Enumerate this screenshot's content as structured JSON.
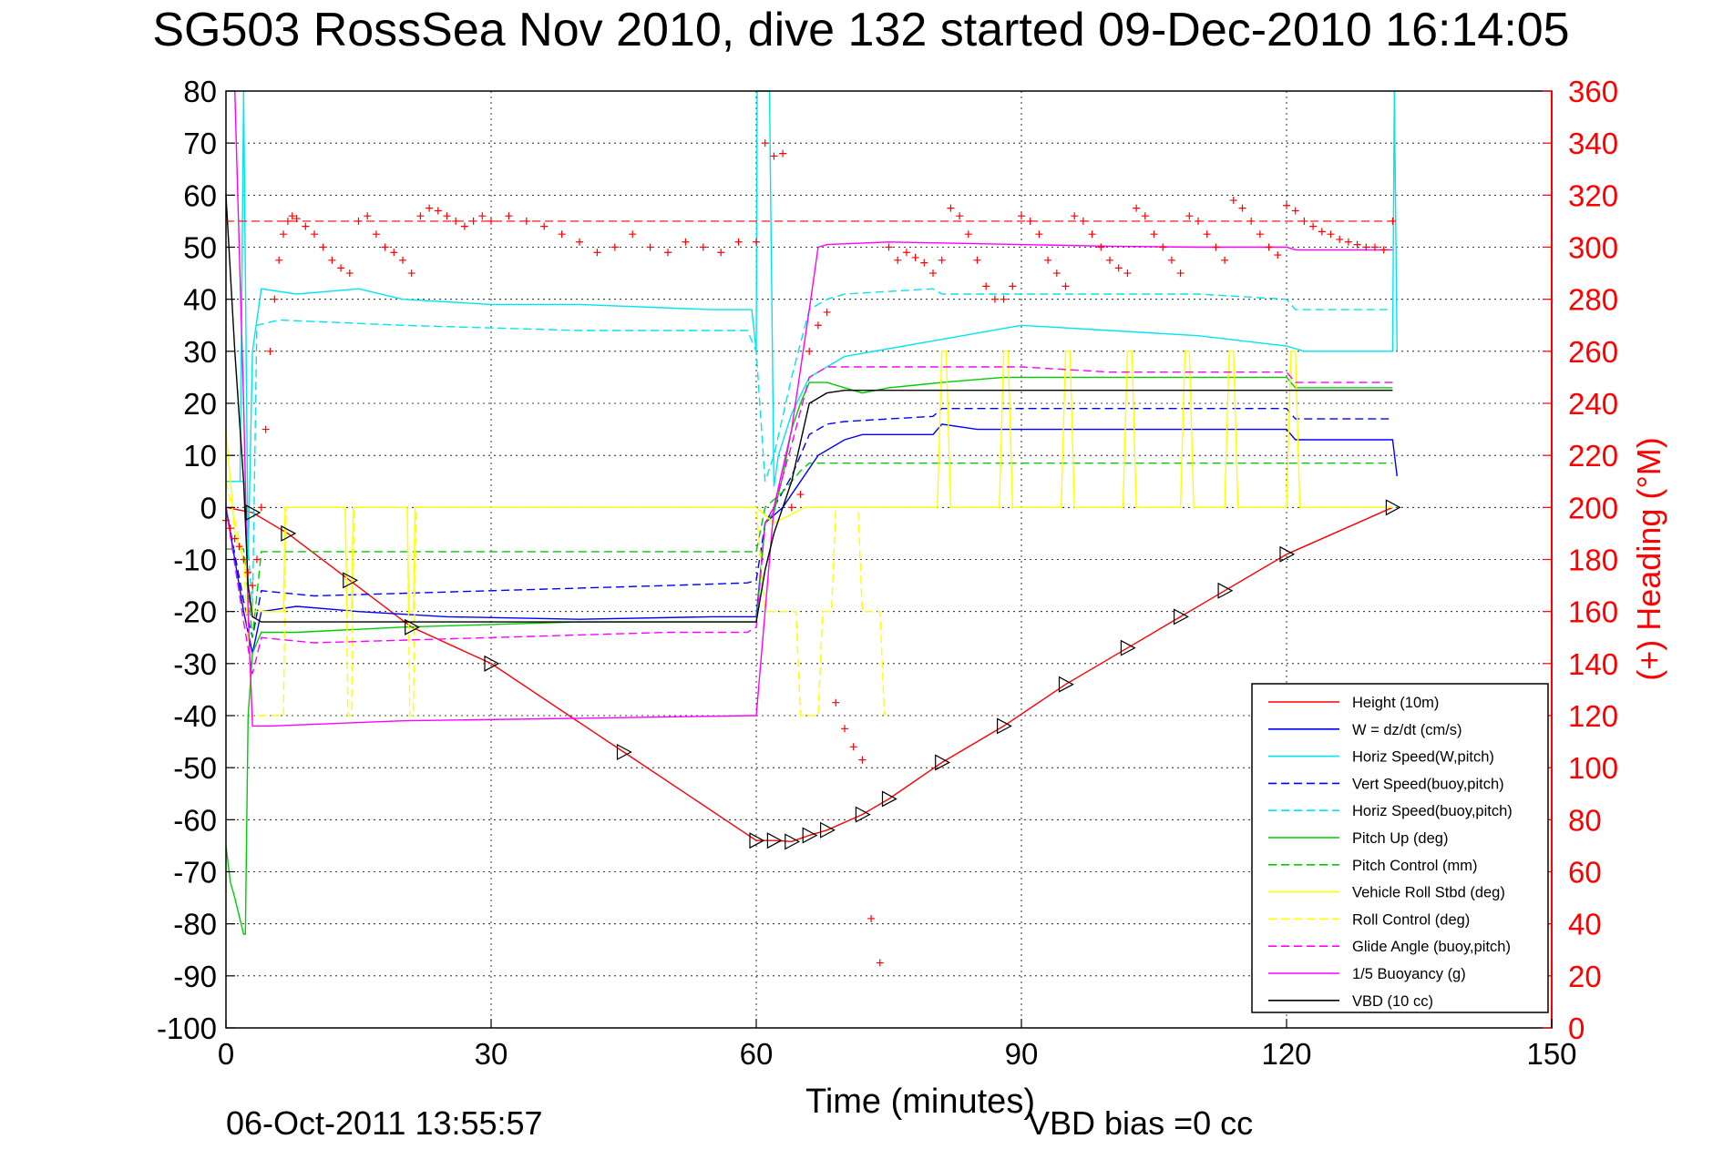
{
  "chart_data": {
    "type": "line",
    "title": "SG503 RossSea Nov 2010, dive 132 started 09-Dec-2010 16:14:05",
    "xlabel": "Time (minutes)",
    "ylabel": "",
    "ylabel_right": "(+) Heading (°M)",
    "xlim": [
      0,
      150
    ],
    "ylim": [
      -100,
      80
    ],
    "ylim_right": [
      0,
      360
    ],
    "x_ticks": [
      "0",
      "30",
      "60",
      "90",
      "120",
      "150"
    ],
    "y_ticks": [
      "80",
      "70",
      "60",
      "50",
      "40",
      "30",
      "20",
      "10",
      "0",
      "-10",
      "-20",
      "-30",
      "-40",
      "-50",
      "-60",
      "-70",
      "-80",
      "-90",
      "-100"
    ],
    "y_right_ticks": [
      "360",
      "340",
      "320",
      "300",
      "280",
      "260",
      "240",
      "220",
      "200",
      "180",
      "160",
      "140",
      "120",
      "100",
      "80",
      "60",
      "40",
      "20",
      "0"
    ],
    "grid": true,
    "legend_position": "bottom-right",
    "footer_left": "06-Oct-2011 13:55:57",
    "footer_right": "VBD bias =0 cc",
    "series": [
      {
        "name": "Height (10m)",
        "color": "#ff0000",
        "dash": "solid",
        "x": [
          0,
          3,
          7,
          14,
          21,
          30,
          45,
          60,
          62,
          64,
          66,
          68,
          72,
          75,
          81,
          88,
          95,
          102,
          108,
          113,
          120,
          132
        ],
        "y": [
          0,
          -1,
          -5,
          -14,
          -23,
          -30,
          -47,
          -64,
          -64,
          -64.2,
          -63,
          -62,
          -59,
          -56,
          -49,
          -42,
          -34,
          -27,
          -21,
          -16,
          -9,
          0
        ]
      },
      {
        "name": "W = dz/dt (cm/s)",
        "color": "#0000ff",
        "dash": "solid",
        "x": [
          0,
          2,
          3,
          4,
          8,
          15,
          25,
          40,
          55,
          60,
          61,
          63,
          65,
          67,
          70,
          72,
          75,
          80,
          81,
          85,
          95,
          105,
          115,
          120,
          121,
          125,
          132,
          132.5
        ],
        "y": [
          0,
          -20,
          -28,
          -20,
          -19,
          -20,
          -21,
          -21.5,
          -21,
          -21,
          -3,
          0,
          5,
          10,
          13,
          14,
          14,
          14,
          16,
          15,
          15,
          15,
          15,
          15,
          13,
          13,
          13,
          6
        ]
      },
      {
        "name": "Horiz Speed(W,pitch)",
        "color": "#00e5ee",
        "dash": "solid",
        "x": [
          0,
          1.6,
          2,
          2.5,
          3,
          4,
          8,
          15,
          20,
          30,
          40,
          55,
          59.5,
          60,
          60.1,
          61.5,
          62,
          62.5,
          64,
          66,
          70,
          80,
          90,
          100,
          110,
          120,
          122,
          125,
          130,
          132,
          132.2,
          132.5
        ],
        "y": [
          5,
          5,
          80,
          -10,
          30,
          42,
          41,
          42,
          40,
          39,
          39,
          38,
          38,
          30,
          80,
          80,
          4,
          10,
          18,
          25,
          29,
          32,
          35,
          34,
          33,
          31,
          30,
          30,
          30,
          30,
          80,
          30
        ]
      },
      {
        "name": "Vert Speed(buoy,pitch)",
        "color": "#0000ff",
        "dash": "dashed",
        "x": [
          0,
          2,
          3,
          4,
          10,
          30,
          50,
          59,
          60,
          61,
          62,
          64,
          66,
          68,
          70,
          75,
          80,
          81,
          90,
          100,
          110,
          120,
          121,
          132
        ],
        "y": [
          0,
          -18,
          -25,
          -16,
          -17,
          -16,
          -15,
          -14.5,
          -14,
          -3,
          0,
          6,
          14,
          16,
          16.5,
          17,
          17.5,
          19,
          19,
          19,
          19,
          19,
          17,
          17
        ]
      },
      {
        "name": "Horiz Speed(buoy,pitch)",
        "color": "#00e5ee",
        "dash": "dashed",
        "x": [
          0,
          2,
          3,
          3.5,
          6,
          20,
          40,
          59,
          60,
          61,
          62,
          64,
          66,
          68,
          70,
          80,
          81,
          90,
          100,
          110,
          120,
          121,
          132
        ],
        "y": [
          5,
          5,
          -20,
          35,
          36,
          35,
          34,
          34,
          30,
          5,
          10,
          25,
          38,
          40,
          41,
          42,
          41,
          41,
          41,
          41,
          40,
          38,
          38
        ]
      },
      {
        "name": "Pitch Up (deg)",
        "color": "#00cc00",
        "dash": "solid",
        "x": [
          0,
          0.5,
          1,
          2,
          2.2,
          2.5,
          3,
          4,
          8,
          20,
          40,
          55,
          60,
          61,
          62,
          63,
          64,
          65,
          66,
          68,
          70,
          72,
          75,
          81,
          88,
          95,
          102,
          108,
          113,
          120,
          121,
          132
        ],
        "y": [
          -65,
          -72,
          -75,
          -82,
          -82,
          -40,
          -28,
          -24,
          -24,
          -23,
          -22,
          -22,
          -22,
          -3,
          -1,
          6,
          15,
          20,
          24,
          24,
          23,
          22,
          23,
          24,
          25,
          25,
          25,
          25,
          25,
          25,
          23,
          23
        ]
      },
      {
        "name": "Pitch Control (mm)",
        "color": "#00cc00",
        "dash": "dashed",
        "x": [
          0,
          2,
          3,
          4,
          20,
          40,
          59,
          60,
          61,
          63,
          65,
          66,
          70,
          90,
          120,
          132
        ],
        "y": [
          -8,
          -8,
          -25,
          -8.5,
          -8.5,
          -8.5,
          -8.5,
          -8.5,
          0,
          3,
          7,
          8.5,
          8.5,
          8.5,
          8.5,
          8.5
        ]
      },
      {
        "name": "Vehicle Roll Stbd (deg)",
        "color": "#ffff00",
        "dash": "solid",
        "x": [
          0,
          1,
          2,
          3,
          6.5,
          6.7,
          7,
          13.5,
          13.7,
          14.2,
          14.4,
          20.5,
          20.7,
          21.2,
          21.4,
          35,
          59.5,
          60,
          62,
          65.5,
          66,
          72,
          74,
          76,
          80.5,
          81,
          81.5,
          82,
          87.5,
          88,
          88.5,
          89,
          94.5,
          95,
          95.5,
          96,
          101.5,
          102,
          102.5,
          103,
          108,
          108.5,
          109,
          109.5,
          113,
          113.5,
          114,
          114.5,
          120,
          120.5,
          121,
          121.5,
          132
        ],
        "y": [
          15,
          -5,
          -10,
          -20,
          -20,
          0,
          0,
          0,
          -20,
          -20,
          0,
          0,
          -20,
          -20,
          0,
          0,
          0,
          0,
          -3,
          0,
          0,
          0,
          0,
          0,
          0,
          30,
          30,
          0,
          0,
          30,
          30,
          0,
          0,
          30,
          30,
          0,
          0,
          30,
          30,
          0,
          0,
          30,
          30,
          0,
          0,
          30,
          30,
          0,
          0,
          30,
          30,
          0,
          0
        ]
      },
      {
        "name": "Roll Control (deg)",
        "color": "#ffff00",
        "dash": "dashed",
        "x": [
          0,
          2,
          3,
          6.5,
          6.8,
          13.5,
          13.8,
          14.2,
          14.5,
          20.5,
          20.8,
          21.2,
          21.5,
          59.5,
          60,
          61,
          63,
          64.5,
          65,
          67,
          67.5,
          68.5,
          69,
          71.5,
          72,
          74,
          74.5
        ],
        "y": [
          5,
          -10,
          -40,
          -40,
          0,
          0,
          -40,
          -40,
          0,
          0,
          -40,
          -40,
          0,
          0,
          0,
          -20,
          -20,
          -20,
          -40,
          -40,
          -20,
          -20,
          0,
          0,
          -20,
          -20,
          -40
        ]
      },
      {
        "name": "Glide Angle (buoy,pitch)",
        "color": "#ff00ff",
        "dash": "dashed",
        "x": [
          0,
          2,
          3,
          4,
          10,
          30,
          50,
          59,
          60,
          61,
          62,
          64,
          66,
          68,
          70,
          81,
          90,
          100,
          110,
          120,
          121,
          132
        ],
        "y": [
          0,
          -22,
          -32,
          -25,
          -26,
          -25,
          -24,
          -24,
          -23,
          -3,
          0,
          12,
          25,
          27,
          27,
          27,
          27,
          26,
          26,
          26,
          24,
          24
        ]
      },
      {
        "name": "1/5 Buoyancy (g)",
        "color": "#ff00ff",
        "dash": "solid",
        "x": [
          1,
          2,
          2.5,
          3,
          5,
          20,
          40,
          59.5,
          60,
          61,
          62,
          64,
          66,
          67,
          68,
          75,
          90,
          100,
          110,
          120,
          121,
          130,
          132
        ],
        "y": [
          80,
          20,
          -20,
          -42,
          -42,
          -41,
          -40.5,
          -40,
          -40,
          -20,
          0,
          15,
          38,
          50,
          50.5,
          51,
          50.5,
          50.2,
          50,
          50,
          49.5,
          49.5,
          49.5
        ]
      },
      {
        "name": "VBD (10 cc)",
        "color": "#000000",
        "dash": "solid",
        "x": [
          0,
          1,
          2,
          2.5,
          3,
          4,
          10,
          30,
          50,
          59.5,
          60,
          61,
          62,
          64,
          66,
          68,
          70,
          90,
          120,
          132
        ],
        "y": [
          60,
          30,
          5,
          -15,
          -21,
          -22,
          -22,
          -22,
          -22,
          -22,
          -22,
          -12,
          -5,
          5,
          20,
          22,
          22.5,
          22.5,
          22.5,
          22.5
        ]
      }
    ],
    "heading_series": {
      "name": "(+) Heading (°M)",
      "color": "#ff0000",
      "marker": "+",
      "target_heading": 310,
      "x": [
        0,
        0.5,
        1,
        1.5,
        2,
        2.5,
        3,
        3.5,
        4,
        4.5,
        5,
        5.5,
        6,
        6.5,
        7,
        7.5,
        8,
        9,
        10,
        11,
        12,
        13,
        14,
        15,
        16,
        17,
        18,
        19,
        20,
        21,
        22,
        23,
        24,
        25,
        26,
        27,
        28,
        29,
        30,
        32,
        34,
        36,
        38,
        40,
        42,
        44,
        46,
        48,
        50,
        52,
        54,
        56,
        58,
        60,
        61,
        62,
        63,
        64,
        65,
        66,
        67,
        68,
        69,
        70,
        71,
        72,
        73,
        74,
        75,
        76,
        77,
        78,
        79,
        80,
        81,
        82,
        83,
        84,
        85,
        86,
        87,
        88,
        89,
        90,
        91,
        92,
        93,
        94,
        95,
        96,
        97,
        98,
        99,
        100,
        101,
        102,
        103,
        104,
        105,
        106,
        107,
        108,
        109,
        110,
        111,
        112,
        113,
        114,
        115,
        116,
        117,
        118,
        119,
        120,
        121,
        122,
        123,
        124,
        125,
        126,
        127,
        128,
        129,
        130,
        131,
        132
      ],
      "y": [
        195,
        192,
        188,
        185,
        180,
        175,
        170,
        180,
        200,
        230,
        260,
        280,
        295,
        305,
        310,
        312,
        311,
        308,
        305,
        300,
        295,
        292,
        290,
        310,
        312,
        305,
        300,
        298,
        295,
        290,
        312,
        315,
        314,
        312,
        310,
        308,
        310,
        312,
        310,
        312,
        310,
        308,
        305,
        302,
        298,
        300,
        305,
        300,
        298,
        302,
        300,
        298,
        302,
        302,
        340,
        335,
        336,
        200,
        205,
        260,
        270,
        275,
        125,
        115,
        108,
        103,
        42,
        25,
        300,
        295,
        298,
        296,
        294,
        290,
        295,
        315,
        312,
        305,
        295,
        285,
        280,
        280,
        285,
        312,
        310,
        305,
        295,
        290,
        285,
        312,
        310,
        305,
        300,
        295,
        292,
        290,
        315,
        312,
        305,
        300,
        295,
        290,
        312,
        310,
        305,
        300,
        295,
        318,
        315,
        310,
        305,
        300,
        297,
        316,
        314,
        310,
        308,
        306,
        305,
        303,
        302,
        301,
        300,
        300,
        299,
        310
      ]
    }
  }
}
